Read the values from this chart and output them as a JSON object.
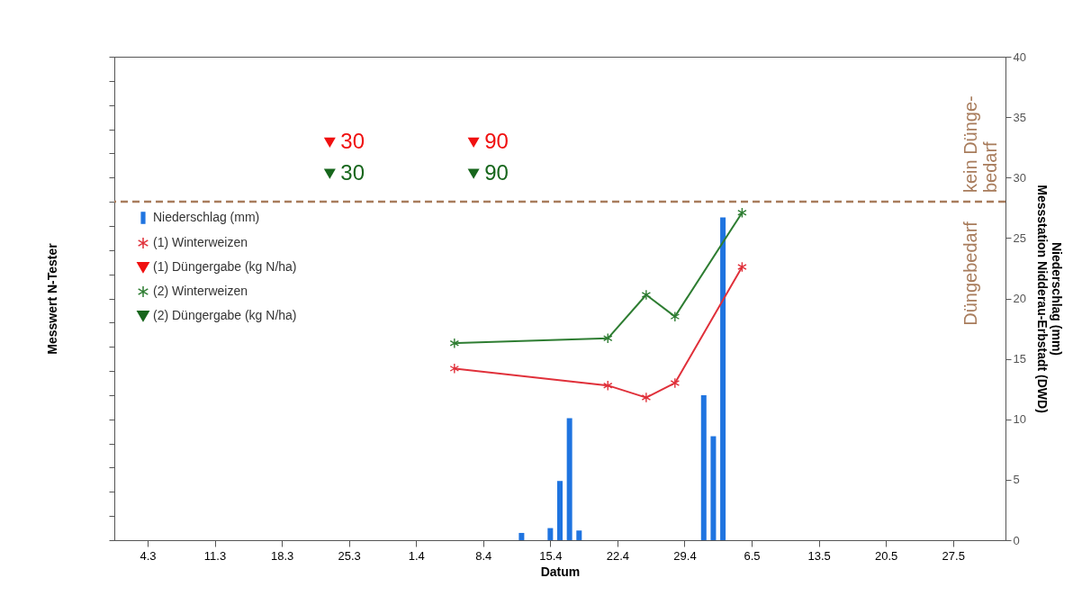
{
  "chart_data": {
    "type": "bar",
    "xlabel": "Datum",
    "ylabel": "Messwert N-Tester",
    "y2label": "Niederschlag (mm)\nMessstation Nidderau-Erbstadt (DWD)",
    "xlim": [
      "--03-01",
      "--06-01"
    ],
    "xticks": [
      {
        "value": "--03-04",
        "label": "4.3"
      },
      {
        "value": "--03-11",
        "label": "11.3"
      },
      {
        "value": "--03-18",
        "label": "18.3"
      },
      {
        "value": "--03-25",
        "label": "25.3"
      },
      {
        "value": "--04-01",
        "label": "1.4"
      },
      {
        "value": "--04-08",
        "label": "8.4"
      },
      {
        "value": "--04-15",
        "label": "15.4"
      },
      {
        "value": "--04-22",
        "label": "22.4"
      },
      {
        "value": "--04-29",
        "label": "29.4"
      },
      {
        "value": "--05-06",
        "label": "6.5"
      },
      {
        "value": "--05-13",
        "label": "13.5"
      },
      {
        "value": "--05-20",
        "label": "20.5"
      },
      {
        "value": "--05-27",
        "label": "27.5"
      }
    ],
    "ylim": [
      0,
      40
    ],
    "yticks": [
      0,
      5,
      10,
      15,
      20,
      25,
      30,
      35,
      40
    ],
    "legend": "left",
    "series": [
      {
        "name": "Niederschlag (mm)",
        "color": "#1f74e0",
        "x": [
          "--04-12",
          "--04-15",
          "--04-16",
          "--04-17",
          "--04-18",
          "--05-01",
          "--05-02",
          "--05-03"
        ],
        "values": [
          0.6,
          1.0,
          4.9,
          10.1,
          0.8,
          12.0,
          8.6,
          26.7
        ]
      },
      {
        "name": "(1) Winterweizen",
        "type": "line",
        "marker": "cross",
        "color": "#e0303a",
        "x": [
          "--04-05",
          "--04-21",
          "--04-25",
          "--04-28",
          "--05-05"
        ],
        "values": [
          14.2,
          12.8,
          11.8,
          13.0,
          22.6
        ]
      },
      {
        "name": "(1) Düngergabe (kg N/ha)",
        "type": "scatter",
        "marker": "triangle",
        "color": "#f01010",
        "x": [
          "--03-23",
          "--04-07"
        ],
        "values": [
          32.9,
          32.9
        ]
      },
      {
        "name": "(2) Winterweizen",
        "type": "line",
        "marker": "cross",
        "color": "#2e7d32",
        "x": [
          "--04-05",
          "--04-21",
          "--04-25",
          "--04-28",
          "--05-05"
        ],
        "values": [
          16.3,
          16.7,
          20.3,
          18.5,
          27.1
        ]
      },
      {
        "name": "(2) Düngergabe (kg N/ha)",
        "type": "scatter",
        "marker": "triangle",
        "color": "#17661c",
        "x": [
          "--03-23",
          "--04-07"
        ],
        "values": [
          30.3,
          30.3
        ]
      }
    ],
    "ref_lines": [
      {
        "axis": "y",
        "value": 28,
        "label": "kein Dünge-\nbedarf",
        "color": "#a87c5c",
        "line_style": "dashed"
      }
    ],
    "annotations": [
      "Düngebedarf",
      {
        "text": "30",
        "x": "--03-23",
        "y": 32.9
      },
      {
        "text": "90",
        "x": "--04-07",
        "y": 32.9
      },
      {
        "text": "30",
        "x": "--03-23",
        "y": 30.3
      },
      {
        "text": "90",
        "x": "--04-07",
        "y": 30.3
      }
    ]
  }
}
